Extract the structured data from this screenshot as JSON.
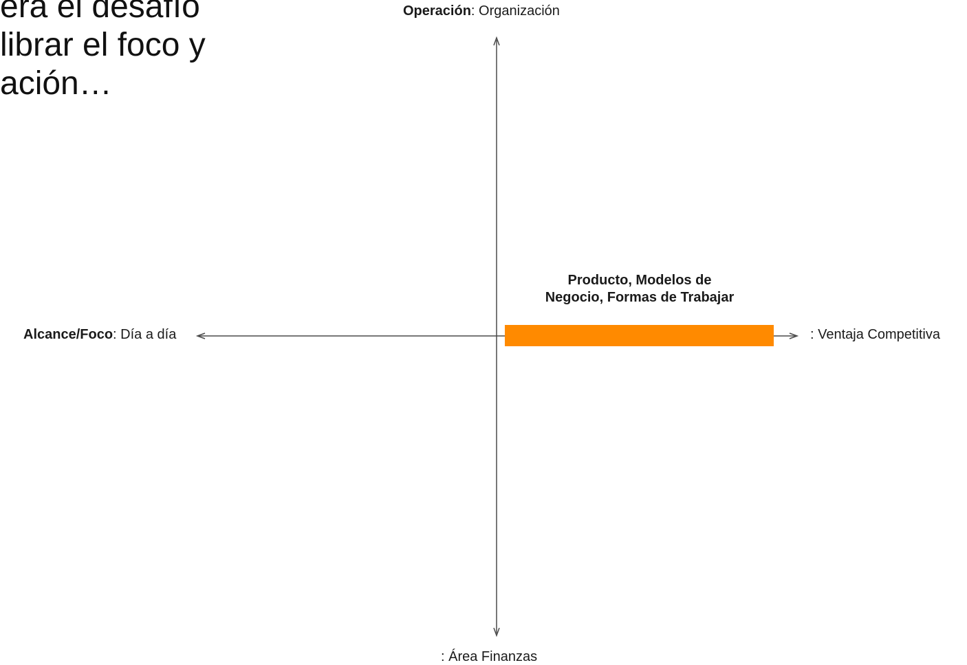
{
  "heading": {
    "line1": "era el desafío",
    "line2": "librar el foco y",
    "line3": "ación…"
  },
  "axes": {
    "top": {
      "bold": "Operación",
      "rest": ": Organización"
    },
    "left": {
      "bold": "Alcance/Foco",
      "rest": ": Día a día"
    },
    "right": {
      "text": ": Ventaja Competitiva"
    },
    "bottom": {
      "text": ": Área Finanzas"
    }
  },
  "bar": {
    "caption_line1": "Producto, Modelos de",
    "caption_line2": "Negocio, Formas de Trabajar",
    "color": "#FF8A00"
  },
  "colors": {
    "axis": "#4a4a4a",
    "text": "#1a1a1a"
  }
}
